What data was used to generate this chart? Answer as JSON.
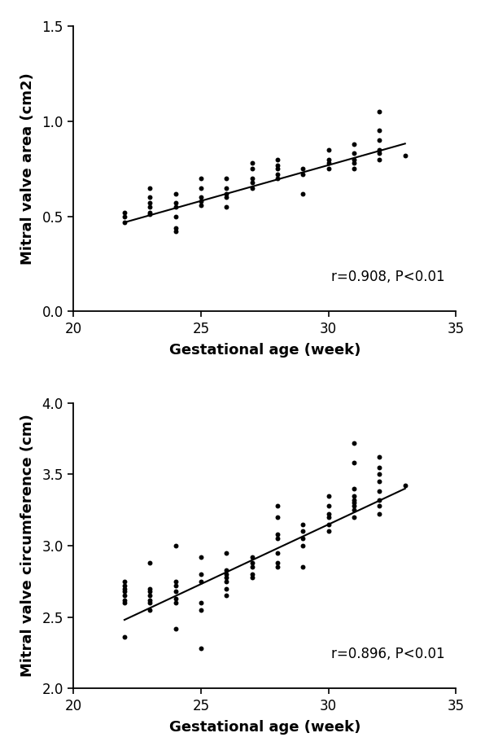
{
  "plot1": {
    "xlabel": "Gestational age (week)",
    "ylabel": "Mitral valve area (cm2)",
    "annotation": "r=0.908, P<0.01",
    "xlim": [
      20,
      35
    ],
    "ylim": [
      0.0,
      1.5
    ],
    "xticks": [
      20,
      25,
      30,
      35
    ],
    "yticks": [
      0.0,
      0.5,
      1.0,
      1.5
    ],
    "line_x": [
      22,
      33
    ],
    "line_y": [
      0.468,
      0.882
    ],
    "x": [
      22,
      22,
      22,
      23,
      23,
      23,
      23,
      23,
      23,
      24,
      24,
      24,
      24,
      24,
      24,
      25,
      25,
      25,
      25,
      25,
      26,
      26,
      26,
      26,
      26,
      27,
      27,
      27,
      27,
      27,
      28,
      28,
      28,
      28,
      28,
      29,
      29,
      29,
      30,
      30,
      30,
      30,
      31,
      31,
      31,
      31,
      31,
      32,
      32,
      32,
      32,
      32,
      32,
      33
    ],
    "y": [
      0.47,
      0.5,
      0.52,
      0.51,
      0.52,
      0.55,
      0.57,
      0.6,
      0.65,
      0.42,
      0.44,
      0.5,
      0.55,
      0.57,
      0.62,
      0.56,
      0.58,
      0.6,
      0.65,
      0.7,
      0.55,
      0.6,
      0.62,
      0.65,
      0.7,
      0.65,
      0.68,
      0.7,
      0.75,
      0.78,
      0.7,
      0.72,
      0.75,
      0.77,
      0.8,
      0.62,
      0.72,
      0.75,
      0.75,
      0.78,
      0.8,
      0.85,
      0.75,
      0.78,
      0.8,
      0.83,
      0.88,
      0.8,
      0.83,
      0.85,
      0.9,
      0.95,
      1.05,
      0.82
    ]
  },
  "plot2": {
    "xlabel": "Gestational age (week)",
    "ylabel": "Mitral valve circumference (cm)",
    "annotation": "r=0.896, P<0.01",
    "xlim": [
      20,
      35
    ],
    "ylim": [
      2.0,
      4.0
    ],
    "xticks": [
      20,
      25,
      30,
      35
    ],
    "yticks": [
      2.0,
      2.5,
      3.0,
      3.5,
      4.0
    ],
    "line_x": [
      22,
      33
    ],
    "line_y": [
      2.48,
      3.4
    ],
    "x": [
      22,
      22,
      22,
      22,
      22,
      22,
      22,
      22,
      23,
      23,
      23,
      23,
      23,
      23,
      23,
      24,
      24,
      24,
      24,
      24,
      24,
      24,
      25,
      25,
      25,
      25,
      25,
      25,
      26,
      26,
      26,
      26,
      26,
      26,
      26,
      27,
      27,
      27,
      27,
      27,
      28,
      28,
      28,
      28,
      28,
      28,
      28,
      29,
      29,
      29,
      29,
      29,
      30,
      30,
      30,
      30,
      30,
      30,
      31,
      31,
      31,
      31,
      31,
      31,
      31,
      31,
      31,
      32,
      32,
      32,
      32,
      32,
      32,
      32,
      32,
      33
    ],
    "y": [
      2.36,
      2.6,
      2.62,
      2.65,
      2.68,
      2.7,
      2.72,
      2.75,
      2.55,
      2.6,
      2.62,
      2.65,
      2.68,
      2.7,
      2.88,
      2.42,
      2.6,
      2.63,
      2.68,
      2.72,
      2.75,
      3.0,
      2.28,
      2.55,
      2.6,
      2.75,
      2.8,
      2.92,
      2.65,
      2.7,
      2.75,
      2.78,
      2.8,
      2.83,
      2.95,
      2.78,
      2.8,
      2.85,
      2.88,
      2.92,
      2.85,
      2.88,
      2.95,
      3.05,
      3.08,
      3.2,
      3.28,
      2.85,
      3.0,
      3.05,
      3.1,
      3.15,
      3.1,
      3.15,
      3.2,
      3.22,
      3.28,
      3.35,
      3.2,
      3.25,
      3.28,
      3.3,
      3.32,
      3.35,
      3.4,
      3.58,
      3.72,
      3.22,
      3.28,
      3.32,
      3.38,
      3.45,
      3.5,
      3.55,
      3.62,
      3.42
    ]
  },
  "dot_color": "#000000",
  "dot_size": 18,
  "line_color": "#000000",
  "line_width": 1.5,
  "font_size_label": 13,
  "font_size_tick": 12,
  "font_size_annot": 12,
  "background_color": "#ffffff"
}
